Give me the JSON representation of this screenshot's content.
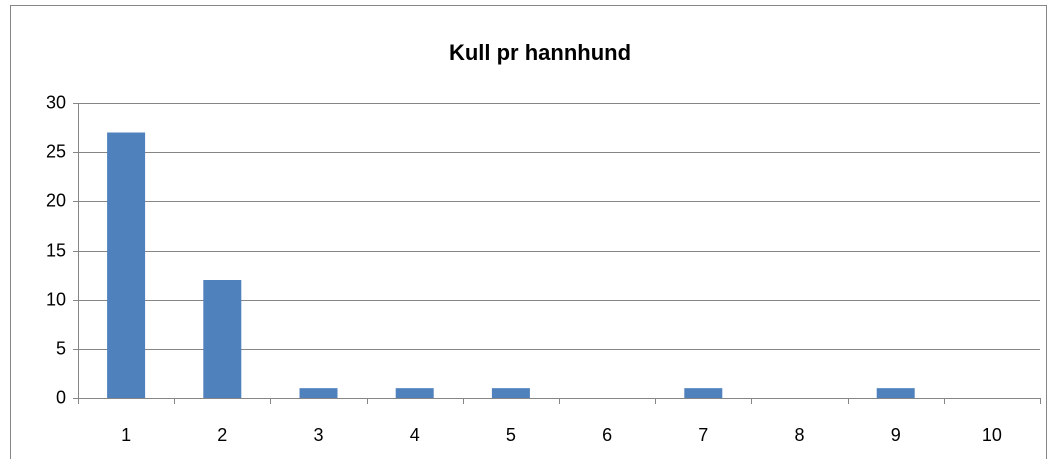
{
  "chart_data": {
    "type": "bar",
    "title": "Kull pr hannhund",
    "categories": [
      "1",
      "2",
      "3",
      "4",
      "5",
      "6",
      "7",
      "8",
      "9",
      "10"
    ],
    "values": [
      27,
      12,
      1,
      1,
      1,
      0,
      1,
      0,
      1,
      0
    ],
    "color": "#4f81bd",
    "ylim": [
      0,
      30
    ],
    "yticks": [
      0,
      5,
      10,
      15,
      20,
      25,
      30
    ],
    "grid": true
  }
}
